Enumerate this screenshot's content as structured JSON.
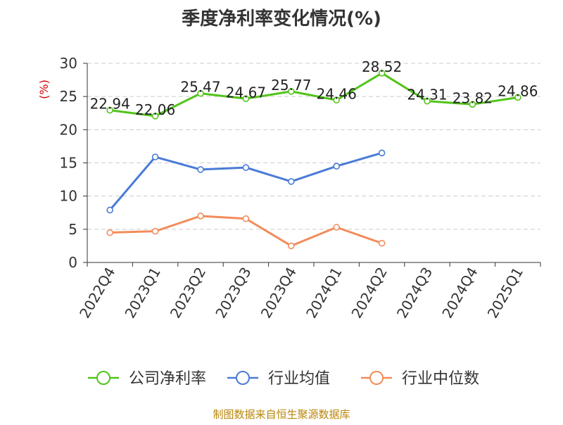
{
  "chart_data": {
    "type": "line",
    "title": "季度净利率变化情况(%)",
    "ylabel": "(%)",
    "xlabel": "",
    "ylim": [
      0,
      30
    ],
    "yticks": [
      0,
      5,
      10,
      15,
      20,
      25,
      30
    ],
    "grid": true,
    "legend_position": "bottom",
    "categories": [
      "2022Q4",
      "2023Q1",
      "2023Q2",
      "2023Q3",
      "2023Q4",
      "2024Q1",
      "2024Q2",
      "2024Q3",
      "2024Q4",
      "2025Q1"
    ],
    "series": [
      {
        "name": "公司净利率",
        "color": "#52c41a",
        "values": [
          22.94,
          22.06,
          25.47,
          24.67,
          25.77,
          24.46,
          28.52,
          24.31,
          23.82,
          24.86
        ],
        "show_labels": true
      },
      {
        "name": "行业均值",
        "color": "#4a7bd6",
        "values": [
          7.9,
          15.9,
          14.0,
          14.3,
          12.2,
          14.5,
          16.5,
          null,
          null,
          null
        ],
        "show_labels": false
      },
      {
        "name": "行业中位数",
        "color": "#f28c5a",
        "values": [
          4.5,
          4.7,
          7.0,
          6.6,
          2.5,
          5.3,
          2.9,
          null,
          null,
          null
        ],
        "show_labels": false
      }
    ]
  },
  "source": "制图数据来自恒生聚源数据库"
}
